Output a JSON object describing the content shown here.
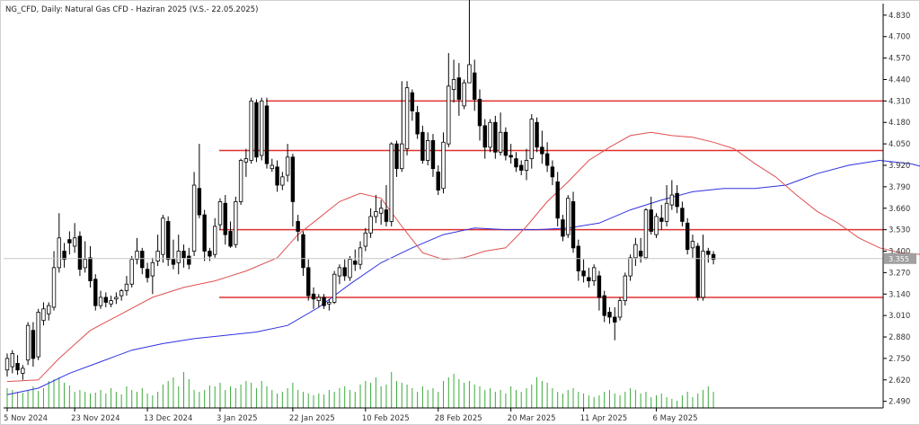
{
  "chart_data": {
    "type": "candlestick",
    "title": "NG_CFD, Daily:  Natural Gas CFD - Haziran 2025 (V.S.- 22.05.2025)",
    "x_tick_labels": [
      "5 Nov 2024",
      "23 Nov 2024",
      "13 Dec 2024",
      "3 Jan 2025",
      "22 Jan 2025",
      "10 Feb 2025",
      "28 Feb 2025",
      "20 Mar 2025",
      "11 Apr 2025",
      "6 May 2025"
    ],
    "y_tick_labels": [
      "4.830",
      "4.700",
      "4.570",
      "4.440",
      "4.310",
      "4.180",
      "4.050",
      "3.920",
      "3.790",
      "3.660",
      "3.530",
      "3.400",
      "3.270",
      "3.140",
      "3.010",
      "2.880",
      "2.750",
      "2.620",
      "2.490"
    ],
    "ylim": [
      2.45,
      4.9
    ],
    "current_price": "3.355",
    "horizontal_levels": [
      4.31,
      4.01,
      3.53,
      3.12
    ],
    "colors": {
      "background": "#ffffff",
      "axis": "#000000",
      "bull_body": "#ffffff",
      "bear_body": "#000000",
      "level_line": "#e03030",
      "ma_fast": "#e05050",
      "ma_slow": "#3030e0",
      "volume": "#3caa3c",
      "price_tag": "#a0a0a0"
    },
    "ohlc": [
      [
        2.68,
        2.75,
        2.64,
        2.78
      ],
      [
        2.7,
        2.78,
        2.66,
        2.8
      ],
      [
        2.72,
        2.68,
        2.65,
        2.77
      ],
      [
        2.66,
        2.69,
        2.62,
        2.71
      ],
      [
        2.74,
        2.95,
        2.71,
        2.97
      ],
      [
        2.92,
        2.75,
        2.7,
        2.97
      ],
      [
        2.76,
        3.03,
        2.74,
        3.05
      ],
      [
        2.98,
        3.05,
        2.95,
        3.09
      ],
      [
        3.02,
        3.07,
        2.98,
        3.09
      ],
      [
        3.06,
        3.3,
        3.04,
        3.4
      ],
      [
        3.3,
        3.48,
        3.27,
        3.63
      ],
      [
        3.4,
        3.35,
        3.3,
        3.45
      ],
      [
        3.47,
        3.45,
        3.38,
        3.52
      ],
      [
        3.43,
        3.48,
        3.39,
        3.57
      ],
      [
        3.49,
        3.29,
        3.25,
        3.52
      ],
      [
        3.3,
        3.35,
        3.27,
        3.46
      ],
      [
        3.36,
        3.22,
        3.18,
        3.43
      ],
      [
        3.23,
        3.07,
        3.04,
        3.26
      ],
      [
        3.07,
        3.12,
        3.05,
        3.16
      ],
      [
        3.12,
        3.09,
        3.06,
        3.15
      ],
      [
        3.08,
        3.1,
        3.06,
        3.13
      ],
      [
        3.11,
        3.12,
        3.08,
        3.15
      ],
      [
        3.13,
        3.16,
        3.1,
        3.17
      ],
      [
        3.16,
        3.2,
        3.13,
        3.25
      ],
      [
        3.2,
        3.35,
        3.18,
        3.37
      ],
      [
        3.35,
        3.4,
        3.32,
        3.48
      ],
      [
        3.4,
        3.3,
        3.26,
        3.42
      ],
      [
        3.29,
        3.24,
        3.21,
        3.33
      ],
      [
        3.25,
        3.33,
        3.14,
        3.36
      ],
      [
        3.34,
        3.4,
        3.31,
        3.5
      ],
      [
        3.38,
        3.6,
        3.33,
        3.62
      ],
      [
        3.58,
        3.35,
        3.31,
        3.61
      ],
      [
        3.35,
        3.32,
        3.29,
        3.47
      ],
      [
        3.33,
        3.4,
        3.26,
        3.5
      ],
      [
        3.4,
        3.36,
        3.3,
        3.44
      ],
      [
        3.37,
        3.32,
        3.29,
        3.42
      ],
      [
        3.4,
        3.8,
        3.37,
        3.88
      ],
      [
        3.78,
        3.62,
        3.6,
        4.05
      ],
      [
        3.62,
        3.4,
        3.34,
        3.65
      ],
      [
        3.4,
        3.37,
        3.34,
        3.42
      ],
      [
        3.38,
        3.55,
        3.36,
        3.6
      ],
      [
        3.56,
        3.7,
        3.53,
        3.72
      ],
      [
        3.69,
        3.5,
        3.44,
        3.74
      ],
      [
        3.52,
        3.43,
        3.42,
        3.58
      ],
      [
        3.44,
        3.7,
        3.42,
        3.73
      ],
      [
        3.7,
        3.95,
        3.68,
        3.96
      ],
      [
        3.94,
        3.96,
        3.85,
        4.02
      ],
      [
        3.95,
        4.31,
        3.93,
        4.33
      ],
      [
        4.3,
        3.97,
        3.94,
        4.32
      ],
      [
        3.98,
        4.31,
        3.95,
        4.33
      ],
      [
        4.28,
        3.93,
        3.9,
        4.33
      ],
      [
        3.9,
        3.92,
        3.88,
        3.96
      ],
      [
        3.91,
        3.8,
        3.76,
        3.95
      ],
      [
        3.8,
        3.85,
        3.77,
        3.88
      ],
      [
        3.86,
        3.97,
        3.82,
        4.05
      ],
      [
        3.97,
        3.7,
        3.55,
        3.99
      ],
      [
        3.58,
        3.52,
        3.46,
        3.62
      ],
      [
        3.5,
        3.3,
        3.25,
        3.52
      ],
      [
        3.3,
        3.13,
        3.1,
        3.35
      ],
      [
        3.14,
        3.11,
        3.05,
        3.18
      ],
      [
        3.1,
        3.12,
        3.06,
        3.14
      ],
      [
        3.12,
        3.07,
        3.05,
        3.14
      ],
      [
        3.08,
        3.09,
        3.04,
        3.11
      ],
      [
        3.09,
        3.26,
        3.08,
        3.28
      ],
      [
        3.25,
        3.3,
        3.2,
        3.32
      ],
      [
        3.3,
        3.25,
        3.22,
        3.35
      ],
      [
        3.24,
        3.35,
        3.22,
        3.37
      ],
      [
        3.34,
        3.32,
        3.28,
        3.41
      ],
      [
        3.32,
        3.42,
        3.29,
        3.46
      ],
      [
        3.43,
        3.51,
        3.4,
        3.54
      ],
      [
        3.51,
        3.61,
        3.48,
        3.66
      ],
      [
        3.61,
        3.64,
        3.57,
        3.74
      ],
      [
        3.63,
        3.66,
        3.56,
        3.71
      ],
      [
        3.65,
        3.58,
        3.55,
        3.8
      ],
      [
        3.58,
        4.05,
        3.55,
        4.06
      ],
      [
        4.05,
        3.9,
        3.85,
        4.07
      ],
      [
        3.9,
        4.05,
        3.88,
        4.43
      ],
      [
        4.02,
        4.39,
        3.98,
        4.43
      ],
      [
        4.36,
        4.25,
        4.19,
        4.38
      ],
      [
        4.24,
        4.11,
        4.08,
        4.28
      ],
      [
        4.12,
        3.95,
        3.93,
        4.16
      ],
      [
        3.95,
        4.07,
        3.92,
        4.12
      ],
      [
        4.07,
        3.9,
        3.85,
        4.11
      ],
      [
        3.88,
        3.77,
        3.74,
        3.92
      ],
      [
        3.78,
        4.06,
        3.75,
        4.12
      ],
      [
        4.05,
        4.4,
        4.03,
        4.6
      ],
      [
        4.38,
        4.44,
        4.3,
        4.56
      ],
      [
        4.45,
        4.32,
        4.22,
        4.54
      ],
      [
        4.28,
        4.42,
        4.26,
        4.44
      ],
      [
        4.42,
        4.53,
        4.42,
        4.94
      ],
      [
        4.48,
        4.32,
        4.25,
        4.56
      ],
      [
        4.32,
        4.16,
        4.07,
        4.38
      ],
      [
        4.16,
        4.03,
        3.96,
        4.2
      ],
      [
        4.03,
        4.18,
        4.0,
        4.2
      ],
      [
        4.18,
        4.0,
        3.96,
        4.22
      ],
      [
        4.0,
        4.12,
        3.98,
        4.24
      ],
      [
        4.12,
        3.98,
        3.95,
        4.15
      ],
      [
        3.98,
        3.97,
        3.93,
        4.05
      ],
      [
        3.96,
        3.91,
        3.88,
        4.0
      ],
      [
        3.92,
        3.89,
        3.86,
        3.95
      ],
      [
        3.89,
        3.95,
        3.83,
        4.02
      ],
      [
        3.96,
        4.2,
        3.9,
        4.23
      ],
      [
        4.18,
        4.03,
        4.0,
        4.21
      ],
      [
        4.03,
        3.99,
        3.93,
        4.13
      ],
      [
        3.99,
        3.92,
        3.88,
        4.06
      ],
      [
        3.91,
        3.85,
        3.8,
        3.95
      ],
      [
        3.82,
        3.6,
        3.55,
        3.88
      ],
      [
        3.59,
        3.49,
        3.46,
        3.62
      ],
      [
        3.5,
        3.72,
        3.48,
        3.74
      ],
      [
        3.7,
        3.42,
        3.39,
        3.76
      ],
      [
        3.43,
        3.28,
        3.22,
        3.47
      ],
      [
        3.28,
        3.25,
        3.21,
        3.35
      ],
      [
        3.24,
        3.22,
        3.18,
        3.3
      ],
      [
        3.22,
        3.3,
        3.19,
        3.32
      ],
      [
        3.25,
        3.12,
        3.04,
        3.28
      ],
      [
        3.13,
        3.01,
        2.97,
        3.16
      ],
      [
        3.03,
        3.0,
        2.96,
        3.06
      ],
      [
        3.0,
        2.97,
        2.86,
        3.06
      ],
      [
        3.0,
        3.1,
        2.98,
        3.12
      ],
      [
        3.1,
        3.25,
        3.07,
        3.27
      ],
      [
        3.25,
        3.36,
        3.22,
        3.38
      ],
      [
        3.36,
        3.44,
        3.31,
        3.48
      ],
      [
        3.4,
        3.37,
        3.33,
        3.48
      ],
      [
        3.36,
        3.65,
        3.35,
        3.66
      ],
      [
        3.65,
        3.52,
        3.5,
        3.73
      ],
      [
        3.5,
        3.61,
        3.48,
        3.63
      ],
      [
        3.6,
        3.58,
        3.53,
        3.68
      ],
      [
        3.58,
        3.69,
        3.55,
        3.8
      ],
      [
        3.68,
        3.74,
        3.65,
        3.83
      ],
      [
        3.75,
        3.67,
        3.63,
        3.8
      ],
      [
        3.66,
        3.58,
        3.55,
        3.7
      ],
      [
        3.57,
        3.41,
        3.38,
        3.6
      ],
      [
        3.42,
        3.46,
        3.36,
        3.5
      ],
      [
        3.43,
        3.12,
        3.1,
        3.45
      ],
      [
        3.12,
        3.4,
        3.1,
        3.5
      ],
      [
        3.4,
        3.38,
        3.33,
        3.42
      ],
      [
        3.38,
        3.35,
        3.32,
        3.4
      ]
    ],
    "ma_fast": [
      [
        0,
        2.61
      ],
      [
        6,
        2.62
      ],
      [
        10,
        2.75
      ],
      [
        16,
        2.92
      ],
      [
        22,
        3.02
      ],
      [
        28,
        3.12
      ],
      [
        34,
        3.18
      ],
      [
        40,
        3.22
      ],
      [
        46,
        3.28
      ],
      [
        52,
        3.36
      ],
      [
        56,
        3.5
      ],
      [
        60,
        3.6
      ],
      [
        64,
        3.7
      ],
      [
        68,
        3.75
      ],
      [
        72,
        3.72
      ],
      [
        76,
        3.55
      ],
      [
        80,
        3.39
      ],
      [
        84,
        3.35
      ],
      [
        88,
        3.36
      ],
      [
        92,
        3.4
      ],
      [
        96,
        3.42
      ],
      [
        100,
        3.55
      ],
      [
        104,
        3.7
      ],
      [
        108,
        3.82
      ],
      [
        112,
        3.95
      ],
      [
        116,
        4.03
      ],
      [
        120,
        4.1
      ],
      [
        124,
        4.12
      ],
      [
        128,
        4.1
      ],
      [
        132,
        4.09
      ],
      [
        136,
        4.06
      ],
      [
        140,
        4.02
      ],
      [
        144,
        3.93
      ],
      [
        148,
        3.85
      ],
      [
        152,
        3.74
      ],
      [
        156,
        3.64
      ],
      [
        160,
        3.57
      ],
      [
        164,
        3.48
      ],
      [
        168,
        3.42
      ],
      [
        172,
        3.39
      ],
      [
        176,
        3.38
      ],
      [
        180,
        3.39
      ],
      [
        184,
        3.4
      ],
      [
        188,
        3.39
      ],
      [
        192,
        3.37
      ],
      [
        196,
        3.37
      ],
      [
        200,
        3.38
      ]
    ],
    "ma_slow": [
      [
        0,
        2.53
      ],
      [
        6,
        2.57
      ],
      [
        12,
        2.66
      ],
      [
        18,
        2.73
      ],
      [
        24,
        2.8
      ],
      [
        30,
        2.84
      ],
      [
        36,
        2.87
      ],
      [
        42,
        2.89
      ],
      [
        48,
        2.91
      ],
      [
        54,
        2.95
      ],
      [
        60,
        3.06
      ],
      [
        66,
        3.2
      ],
      [
        72,
        3.33
      ],
      [
        78,
        3.42
      ],
      [
        84,
        3.5
      ],
      [
        90,
        3.54
      ],
      [
        96,
        3.53
      ],
      [
        102,
        3.53
      ],
      [
        108,
        3.54
      ],
      [
        114,
        3.57
      ],
      [
        120,
        3.65
      ],
      [
        126,
        3.71
      ],
      [
        132,
        3.76
      ],
      [
        138,
        3.78
      ],
      [
        144,
        3.78
      ],
      [
        150,
        3.8
      ],
      [
        156,
        3.87
      ],
      [
        162,
        3.92
      ],
      [
        168,
        3.95
      ],
      [
        174,
        3.93
      ],
      [
        180,
        3.88
      ],
      [
        186,
        3.79
      ],
      [
        192,
        3.7
      ],
      [
        198,
        3.6
      ]
    ],
    "volume": [
      22,
      20,
      18,
      17,
      20,
      24,
      19,
      22,
      30,
      32,
      34,
      28,
      25,
      18,
      20,
      18,
      16,
      17,
      20,
      16,
      22,
      18,
      15,
      24,
      20,
      18,
      22,
      16,
      14,
      18,
      26,
      30,
      34,
      24,
      40,
      32,
      20,
      18,
      20,
      25,
      24,
      28,
      20,
      24,
      22,
      26,
      30,
      28,
      22,
      30,
      24,
      20,
      16,
      18,
      22,
      28,
      20,
      18,
      16,
      14,
      16,
      15,
      20,
      18,
      22,
      24,
      20,
      18,
      26,
      30,
      28,
      34,
      24,
      26,
      40,
      30,
      28,
      26,
      22,
      18,
      24,
      20,
      22,
      18,
      30,
      34,
      38,
      32,
      28,
      30,
      26,
      24,
      20,
      22,
      18,
      20,
      16,
      24,
      20,
      18,
      22,
      26,
      34,
      30,
      28,
      22,
      18,
      16,
      20,
      22,
      18,
      16,
      14,
      12,
      14,
      18,
      20,
      16,
      14,
      18,
      22,
      20,
      16,
      18,
      12,
      14,
      16,
      12,
      10,
      8,
      14,
      18,
      12,
      16,
      20,
      24,
      18,
      22,
      16,
      14
    ]
  }
}
